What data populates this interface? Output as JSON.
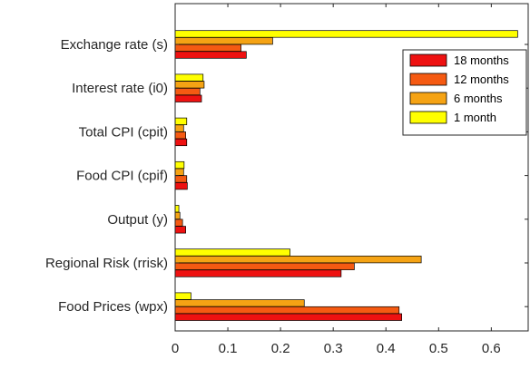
{
  "chart_data": {
    "type": "bar",
    "orientation": "horizontal",
    "categories": [
      "Exchange rate (s)",
      "Interest rate (i0)",
      "Total CPI (cpit)",
      "Food CPI (cpif)",
      "Output (y)",
      "Regional Risk (rrisk)",
      "Food Prices (wpx)"
    ],
    "series": [
      {
        "name": "18 months",
        "color": "#ee1111",
        "values": [
          0.135,
          0.05,
          0.022,
          0.023,
          0.02,
          0.315,
          0.43
        ]
      },
      {
        "name": "12 months",
        "color": "#f55a12",
        "values": [
          0.125,
          0.047,
          0.02,
          0.022,
          0.014,
          0.34,
          0.425
        ]
      },
      {
        "name": "6 months",
        "color": "#f5a314",
        "values": [
          0.185,
          0.055,
          0.016,
          0.016,
          0.009,
          0.467,
          0.245
        ]
      },
      {
        "name": "1 month",
        "color": "#ffff00",
        "values": [
          0.65,
          0.053,
          0.022,
          0.017,
          0.007,
          0.218,
          0.03
        ]
      }
    ],
    "xlim": [
      0,
      0.67
    ],
    "xticks": [
      0,
      0.1,
      0.2,
      0.3,
      0.4,
      0.5,
      0.6
    ],
    "xtick_labels": [
      "0",
      "0.1",
      "0.2",
      "0.3",
      "0.4",
      "0.5",
      "0.6"
    ],
    "title": "",
    "xlabel": "",
    "ylabel": "",
    "grid": false,
    "legend": "top-right"
  }
}
